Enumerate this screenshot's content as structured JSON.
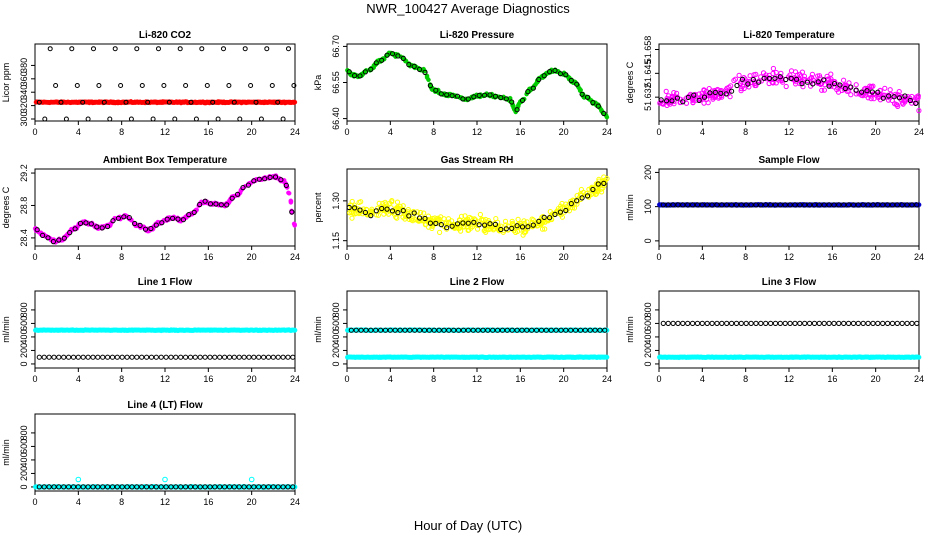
{
  "title": "NWR_100427  Average Diagnostics",
  "xlabel": "Hour of Day (UTC)",
  "colors": {
    "red": "#ff0000",
    "green": "#00cc00",
    "magenta": "#ff00ff",
    "yellow": "#ffff00",
    "blue": "#0000cc",
    "cyan": "#00ffff",
    "black": "#000000"
  },
  "chart_data": [
    {
      "name": "li820-co2",
      "type": "scatter",
      "title": "Li-820 CO2",
      "ylabel": "Licor ppm",
      "xlim": [
        0,
        24
      ],
      "ylim": [
        297,
        412
      ],
      "xticks": [
        0,
        4,
        8,
        12,
        16,
        20,
        24
      ],
      "yticks": [
        300,
        320,
        340,
        360,
        380
      ],
      "pattern": "co2",
      "series": [
        {
          "name": "all",
          "color": "red",
          "style": "dense",
          "level": 325
        },
        {
          "name": "avg",
          "color": "black",
          "style": "open",
          "levels": [
            300,
            325,
            350,
            405
          ]
        }
      ]
    },
    {
      "name": "li820-pressure",
      "type": "scatter",
      "title": "Li-820 Pressure",
      "ylabel": "kPa",
      "xlim": [
        0,
        24
      ],
      "ylim": [
        66.39,
        66.71
      ],
      "xticks": [
        0,
        4,
        8,
        12,
        16,
        20,
        24
      ],
      "yticks": [
        66.4,
        66.55,
        66.7
      ],
      "yticklabels": [
        "66.40",
        "66.55",
        "66.70"
      ],
      "pattern": "curve",
      "noise": 0.008,
      "n": 400,
      "curve": {
        "x": [
          0,
          0.5,
          1,
          2,
          3,
          4,
          4.5,
          5,
          6,
          7,
          8,
          9,
          10,
          11,
          12,
          13,
          14,
          15,
          15.6,
          16,
          17,
          18,
          19,
          20,
          21,
          22,
          23,
          24
        ],
        "y": [
          66.6,
          66.58,
          66.575,
          66.6,
          66.64,
          66.67,
          66.665,
          66.655,
          66.62,
          66.6,
          66.52,
          66.5,
          66.495,
          66.48,
          66.495,
          66.5,
          66.49,
          66.48,
          66.43,
          66.47,
          66.52,
          66.575,
          66.6,
          66.585,
          66.55,
          66.49,
          66.46,
          66.41
        ]
      },
      "series": [
        {
          "name": "all",
          "color": "green",
          "style": "filled"
        },
        {
          "name": "avg",
          "color": "black",
          "style": "open"
        }
      ]
    },
    {
      "name": "li820-temperature",
      "type": "scatter",
      "title": "Li-820 Temperature",
      "ylabel": "degrees C",
      "xlim": [
        0,
        24
      ],
      "ylim": [
        51.619,
        51.661
      ],
      "xticks": [
        0,
        4,
        8,
        12,
        16,
        20,
        24
      ],
      "yticks": [
        51.632,
        51.645,
        51.658
      ],
      "yticklabels": [
        "51.632",
        "51.645",
        "51.658"
      ],
      "pattern": "curve",
      "noise": 0.006,
      "n": 320,
      "curve": {
        "x": [
          0,
          2,
          4,
          6,
          8,
          9,
          10,
          12,
          14,
          16,
          18,
          20,
          22,
          24
        ],
        "y": [
          51.63,
          51.631,
          51.632,
          51.635,
          51.64,
          51.642,
          51.643,
          51.642,
          51.641,
          51.64,
          51.636,
          51.634,
          51.632,
          51.629
        ]
      },
      "series": [
        {
          "name": "all",
          "color": "magenta",
          "style": "open"
        },
        {
          "name": "avg",
          "color": "black",
          "style": "open"
        }
      ]
    },
    {
      "name": "ambient-box-temperature",
      "type": "scatter",
      "title": "Ambient Box Temperature",
      "ylabel": "degrees C",
      "xlim": [
        0,
        24
      ],
      "ylim": [
        28.3,
        29.25
      ],
      "xticks": [
        0,
        4,
        8,
        12,
        16,
        20,
        24
      ],
      "yticks": [
        28.4,
        28.8,
        29.2
      ],
      "yticklabels": [
        "28.4",
        "28.8",
        "29.2"
      ],
      "pattern": "curve",
      "noise": 0.025,
      "n": 400,
      "curve": {
        "x": [
          0,
          1,
          1.8,
          2.5,
          3.5,
          4.5,
          5,
          6,
          6.8,
          7.5,
          8.5,
          9.5,
          10.5,
          11.5,
          12.5,
          13.5,
          14.5,
          15.5,
          16.5,
          17.5,
          18.5,
          19.5,
          20.5,
          21.5,
          22,
          23,
          23.5,
          23.8,
          24
        ],
        "y": [
          28.5,
          28.42,
          28.36,
          28.38,
          28.5,
          28.6,
          28.58,
          28.52,
          28.55,
          28.65,
          28.66,
          28.55,
          28.5,
          28.58,
          28.65,
          28.62,
          28.7,
          28.85,
          28.82,
          28.8,
          28.92,
          29.05,
          29.12,
          29.14,
          29.16,
          29.1,
          28.95,
          28.65,
          28.55
        ]
      },
      "series": [
        {
          "name": "all",
          "color": "magenta",
          "style": "filled"
        },
        {
          "name": "avg",
          "color": "black",
          "style": "open"
        }
      ]
    },
    {
      "name": "gas-stream-rh",
      "type": "scatter",
      "title": "Gas Stream RH",
      "ylabel": "percent",
      "xlim": [
        0,
        24
      ],
      "ylim": [
        1.13,
        1.42
      ],
      "xticks": [
        0,
        4,
        8,
        12,
        16,
        20,
        24
      ],
      "yticks": [
        1.15,
        1.3
      ],
      "yticklabels": [
        "1.15",
        "1.30"
      ],
      "pattern": "curve",
      "noise": 0.04,
      "n": 420,
      "curve": {
        "x": [
          0,
          2,
          4,
          6,
          8,
          10,
          12,
          14,
          16,
          18,
          20,
          22,
          24
        ],
        "y": [
          1.27,
          1.26,
          1.27,
          1.25,
          1.22,
          1.21,
          1.22,
          1.2,
          1.2,
          1.22,
          1.27,
          1.32,
          1.37
        ]
      },
      "series": [
        {
          "name": "all",
          "color": "yellow",
          "style": "open"
        },
        {
          "name": "avg",
          "color": "black",
          "style": "open"
        }
      ]
    },
    {
      "name": "sample-flow",
      "type": "scatter",
      "title": "Sample Flow",
      "ylabel": "ml/min",
      "xlim": [
        0,
        24
      ],
      "ylim": [
        -15,
        210
      ],
      "xticks": [
        0,
        4,
        8,
        12,
        16,
        20,
        24
      ],
      "yticks": [
        0,
        100,
        200
      ],
      "pattern": "flat",
      "series": [
        {
          "name": "all",
          "color": "blue",
          "style": "filled",
          "level": 105
        },
        {
          "name": "avg",
          "color": "black",
          "style": "open",
          "level": 105
        }
      ]
    },
    {
      "name": "line1-flow",
      "type": "scatter",
      "title": "Line 1 Flow",
      "ylabel": "ml/min",
      "xlim": [
        0,
        24
      ],
      "ylim": [
        -60,
        1080
      ],
      "xticks": [
        0,
        4,
        8,
        12,
        16,
        20,
        24
      ],
      "yticks": [
        0,
        200,
        400,
        600,
        800
      ],
      "pattern": "flat",
      "series": [
        {
          "name": "all",
          "color": "cyan",
          "style": "filled",
          "level": 500
        },
        {
          "name": "avg",
          "color": "black",
          "style": "open",
          "level": 100
        }
      ]
    },
    {
      "name": "line2-flow",
      "type": "scatter",
      "title": "Line 2 Flow",
      "ylabel": "ml/min",
      "xlim": [
        0,
        24
      ],
      "ylim": [
        -60,
        1080
      ],
      "xticks": [
        0,
        4,
        8,
        12,
        16,
        20,
        24
      ],
      "yticks": [
        0,
        200,
        400,
        600,
        800
      ],
      "pattern": "flat",
      "series": [
        {
          "name": "all",
          "color": "cyan",
          "style": "filled",
          "level": 100,
          "extra_level": 500
        },
        {
          "name": "avg",
          "color": "black",
          "style": "open",
          "level": 500
        }
      ]
    },
    {
      "name": "line3-flow",
      "type": "scatter",
      "title": "Line 3 Flow",
      "ylabel": "ml/min",
      "xlim": [
        0,
        24
      ],
      "ylim": [
        -60,
        1080
      ],
      "xticks": [
        0,
        4,
        8,
        12,
        16,
        20,
        24
      ],
      "yticks": [
        0,
        200,
        400,
        600,
        800
      ],
      "pattern": "flat",
      "series": [
        {
          "name": "all",
          "color": "cyan",
          "style": "filled",
          "level": 100
        },
        {
          "name": "avg",
          "color": "black",
          "style": "open",
          "level": 600
        }
      ]
    },
    {
      "name": "line4-lt-flow",
      "type": "scatter",
      "title": "Line 4 (LT) Flow",
      "ylabel": "ml/min",
      "xlim": [
        0,
        24
      ],
      "ylim": [
        -60,
        1080
      ],
      "xticks": [
        0,
        4,
        8,
        12,
        16,
        20,
        24
      ],
      "yticks": [
        0,
        200,
        400,
        600,
        800
      ],
      "pattern": "flat",
      "series": [
        {
          "name": "all",
          "color": "cyan",
          "style": "filled",
          "level": 0,
          "spikes": [
            [
              4,
              110
            ],
            [
              12,
              110
            ],
            [
              20,
              110
            ]
          ]
        },
        {
          "name": "avg",
          "color": "black",
          "style": "open",
          "level": 0
        }
      ]
    }
  ]
}
